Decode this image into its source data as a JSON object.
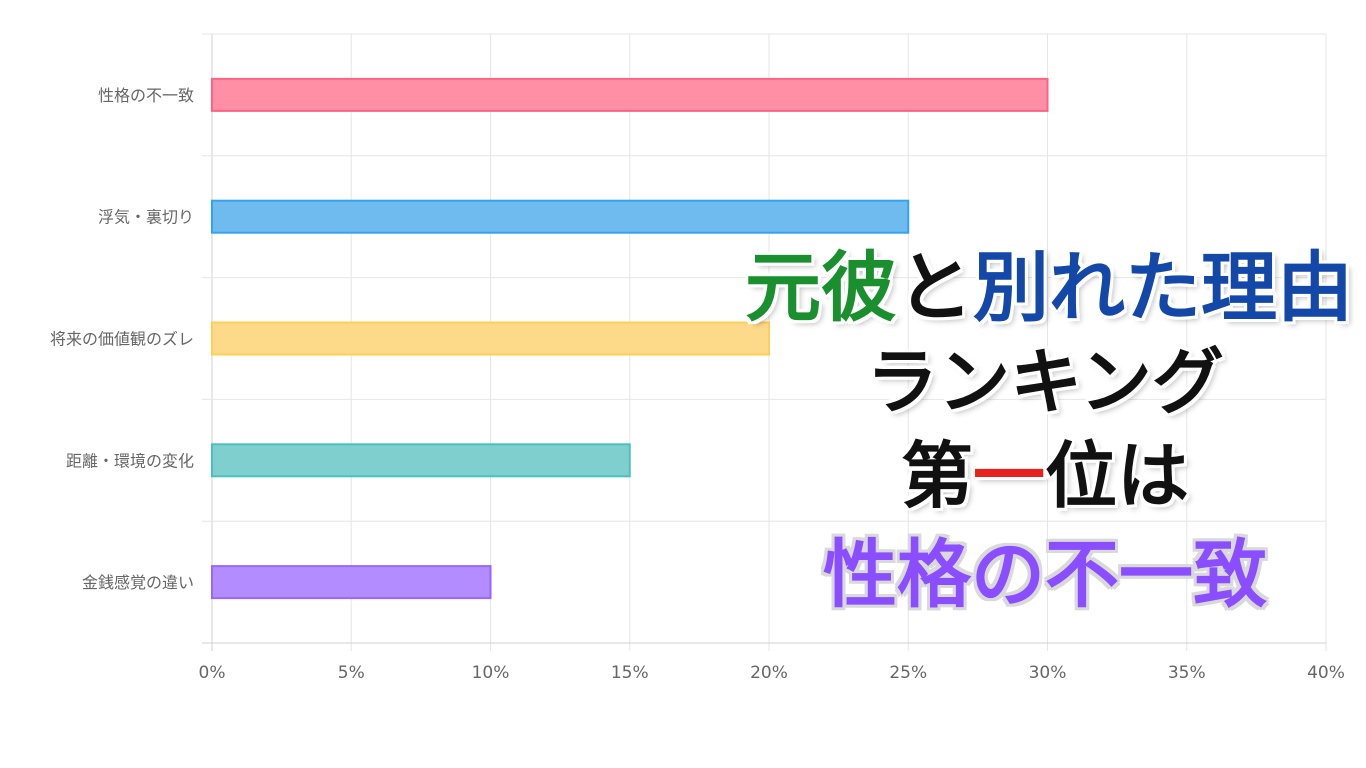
{
  "chart_data": {
    "type": "bar",
    "orientation": "horizontal",
    "categories": [
      "性格の不一致",
      "浮気・裏切り",
      "将来の価値観のズレ",
      "距離・環境の変化",
      "金銭感覚の違い"
    ],
    "values": [
      30,
      25,
      20,
      15,
      10
    ],
    "xlim": [
      0,
      40
    ],
    "x_ticks": [
      "0%",
      "5%",
      "10%",
      "15%",
      "20%",
      "25%",
      "30%",
      "35%",
      "40%"
    ],
    "grid": true,
    "bar_colors": [
      "#ff6384",
      "#36a2eb",
      "#ffce56",
      "#4bc0c0",
      "#9966ff"
    ],
    "bar_fill_colors": [
      "#ff8fa5",
      "#6fbbf0",
      "#fdda8a",
      "#80cfcf",
      "#b38cff"
    ]
  },
  "overlay": {
    "line1": {
      "part1": "元彼",
      "part2": "と",
      "part3": "別れた理由"
    },
    "line2": "ランキング",
    "line3": {
      "part1": "第",
      "part2": "一",
      "part3": "位は"
    },
    "line4": "性格の不一致"
  },
  "colors": {
    "green": "#1a8f2e",
    "black": "#111111",
    "blue": "#1347a8",
    "red": "#e8201f",
    "purple": "#8a4dff"
  }
}
